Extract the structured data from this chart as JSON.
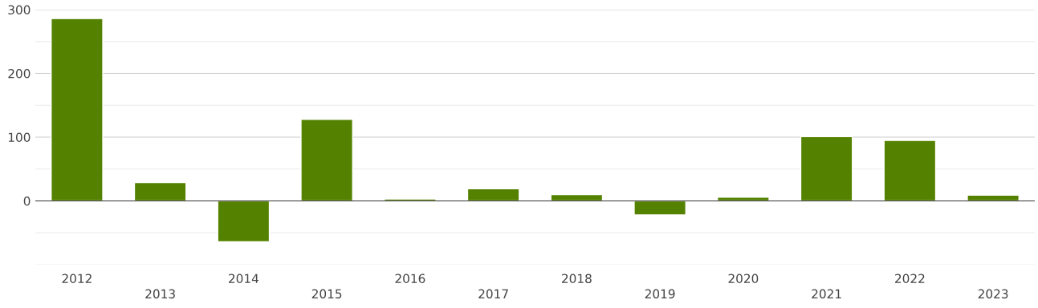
{
  "chart_data": {
    "type": "bar",
    "categories": [
      "2012",
      "2013",
      "2014",
      "2015",
      "2016",
      "2017",
      "2018",
      "2019",
      "2020",
      "2021",
      "2022",
      "2023"
    ],
    "values": [
      286,
      29,
      -64,
      128,
      3,
      19,
      10,
      -22,
      6,
      101,
      95,
      9
    ],
    "color": "#548200",
    "ylim": [
      -100,
      300
    ],
    "yticks": [
      {
        "value": -100,
        "label": null
      },
      {
        "value": -50,
        "label": null
      },
      0,
      {
        "value": 50,
        "label": null
      },
      100,
      {
        "value": 150,
        "label": null
      },
      200,
      {
        "value": 250,
        "label": null
      },
      300
    ],
    "grid": "y"
  }
}
